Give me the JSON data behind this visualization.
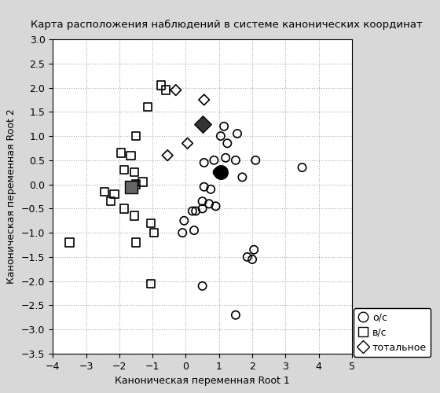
{
  "title": "Карта расположения наблюдений в системе канонических координат",
  "xlabel": "Каноническая переменная Root 1",
  "ylabel": "Каноническая переменная Root 2",
  "xlim": [
    -4,
    5
  ],
  "ylim": [
    -3.5,
    3.0
  ],
  "xticks": [
    -4,
    -3,
    -2,
    -1,
    0,
    1,
    2,
    3,
    4,
    5
  ],
  "yticks": [
    -3.5,
    -3.0,
    -2.5,
    -2.0,
    -1.5,
    -1.0,
    -0.5,
    0.0,
    0.5,
    1.0,
    1.5,
    2.0,
    2.5,
    3.0
  ],
  "circle_points": [
    [
      1.15,
      1.2
    ],
    [
      1.55,
      1.05
    ],
    [
      1.05,
      1.0
    ],
    [
      1.25,
      0.85
    ],
    [
      1.5,
      0.5
    ],
    [
      1.2,
      0.55
    ],
    [
      0.85,
      0.5
    ],
    [
      0.55,
      0.45
    ],
    [
      3.5,
      0.35
    ],
    [
      2.1,
      0.5
    ],
    [
      1.7,
      0.15
    ],
    [
      0.95,
      0.25
    ],
    [
      0.55,
      -0.05
    ],
    [
      0.75,
      -0.1
    ],
    [
      0.5,
      -0.35
    ],
    [
      0.7,
      -0.4
    ],
    [
      0.3,
      -0.55
    ],
    [
      0.5,
      -0.5
    ],
    [
      0.9,
      -0.45
    ],
    [
      -0.1,
      -1.0
    ],
    [
      0.25,
      -0.95
    ],
    [
      0.2,
      -0.55
    ],
    [
      -0.05,
      -0.75
    ],
    [
      2.05,
      -1.35
    ],
    [
      2.0,
      -1.55
    ],
    [
      1.85,
      -1.5
    ],
    [
      0.5,
      -2.1
    ],
    [
      1.5,
      -2.7
    ]
  ],
  "square_points": [
    [
      -0.75,
      2.05
    ],
    [
      -0.6,
      1.95
    ],
    [
      -1.15,
      1.6
    ],
    [
      -1.5,
      1.0
    ],
    [
      -1.95,
      0.65
    ],
    [
      -1.65,
      0.6
    ],
    [
      -1.85,
      0.3
    ],
    [
      -1.55,
      0.25
    ],
    [
      -1.5,
      0.0
    ],
    [
      -1.3,
      0.05
    ],
    [
      -2.45,
      -0.15
    ],
    [
      -2.15,
      -0.2
    ],
    [
      -2.25,
      -0.35
    ],
    [
      -1.85,
      -0.5
    ],
    [
      -1.55,
      -0.65
    ],
    [
      -1.05,
      -0.8
    ],
    [
      -0.95,
      -1.0
    ],
    [
      -1.5,
      -1.2
    ],
    [
      -1.05,
      -2.05
    ],
    [
      -3.5,
      -1.2
    ]
  ],
  "diamond_points": [
    [
      -0.3,
      1.95
    ],
    [
      0.55,
      1.75
    ],
    [
      -0.55,
      0.6
    ],
    [
      0.05,
      0.85
    ]
  ],
  "centroid_circle": [
    1.05,
    0.25
  ],
  "centroid_square": [
    -1.65,
    -0.05
  ],
  "centroid_diamond": [
    0.5,
    1.25
  ],
  "legend_labels": [
    "о/с",
    "в/с",
    "тотальное"
  ],
  "bg_color": "#d8d8d8",
  "plot_bg_color": "#ffffff",
  "grid_color": "#aaaaaa",
  "title_fontsize": 9.5,
  "label_fontsize": 9,
  "tick_fontsize": 9
}
